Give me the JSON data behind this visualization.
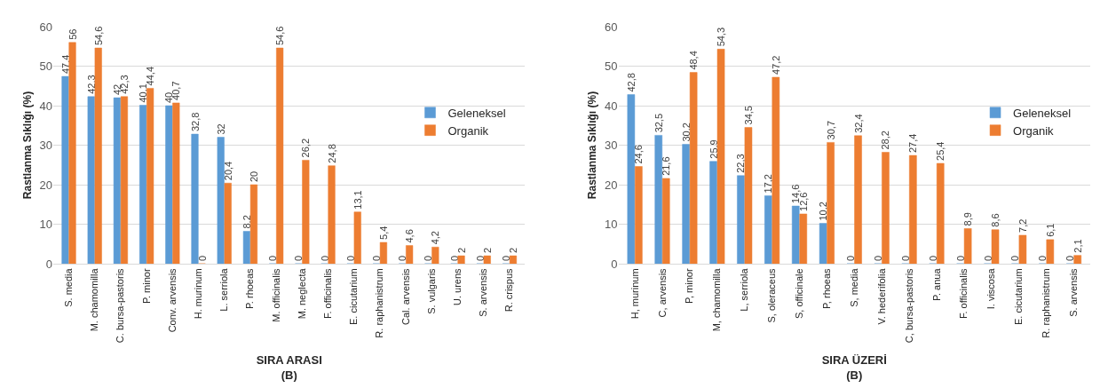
{
  "chart_data": [
    {
      "type": "bar",
      "xlabel": "SIRA ARASI\n(B)",
      "ylabel": "Rastlanma Sıklığı (%)",
      "categories": [
        "S. media",
        "M. chamomilla",
        "C. bursa-pastoris",
        "P. minor",
        "Conv. arvensis",
        "H. murinum",
        "L. serriola",
        "P. rhoeas",
        "M. officinalis",
        "M. neglecta",
        "F. officinalis",
        "E. cicutarium",
        "R. raphanistrum",
        "Cal. arvensis",
        "S. vulgaris",
        "U. urens",
        "S. arvensis",
        "R. crispus"
      ],
      "series": [
        {
          "name": "Geleneksel",
          "color": "#5b9bd5",
          "values": [
            47.4,
            42.3,
            42,
            40.1,
            40,
            32.8,
            32,
            8.2,
            0,
            0,
            0,
            0,
            0,
            0,
            0,
            0,
            0,
            0
          ],
          "value_labels": [
            "47,4",
            "42,3",
            "42",
            "40,1",
            "40",
            "32,8",
            "32",
            "8,2",
            "0",
            "0",
            "0",
            "0",
            "0",
            "0",
            "0",
            "0",
            "0",
            "0"
          ]
        },
        {
          "name": "Organik",
          "color": "#ed7d31",
          "values": [
            56,
            54.6,
            42.3,
            44.4,
            40.7,
            0,
            20.4,
            20,
            54.6,
            26.2,
            24.8,
            13.1,
            5.4,
            4.6,
            4.2,
            2,
            2,
            2
          ],
          "value_labels": [
            "56",
            "54,6",
            "42,3",
            "44,4",
            "40,7",
            "0",
            "20,4",
            "20",
            "54,6",
            "26,2",
            "24,8",
            "13,1",
            "5,4",
            "4,6",
            "4,2",
            "2",
            "2",
            "2"
          ]
        }
      ],
      "ylim": [
        0,
        60
      ],
      "yticks": [
        0,
        10,
        20,
        30,
        40,
        50,
        60
      ],
      "grid": "y",
      "legend": "right"
    },
    {
      "type": "bar",
      "xlabel": "SIRA ÜZERİ\n(B)",
      "ylabel": "Rastlanma Sıklığı (%)",
      "categories": [
        "H, murinum",
        "C, arvensis",
        "P, minor",
        "M, chamomilla",
        "L, serriola",
        "S, oleraceus",
        "S, officinale",
        "P, rhoeas",
        "S, media",
        "V. hederifolia",
        "C, bursa-pastoris",
        "P. anua",
        "F. officinalis",
        "I. viscosa",
        "E. cicutarium",
        "R. raphanistrum",
        "S. arvensis"
      ],
      "series": [
        {
          "name": "Geleneksel",
          "color": "#5b9bd5",
          "values": [
            42.8,
            32.5,
            30.2,
            25.9,
            22.3,
            17.2,
            14.6,
            10.2,
            0,
            0,
            0,
            0,
            0,
            0,
            0,
            0,
            0
          ],
          "value_labels": [
            "42,8",
            "32,5",
            "30,2",
            "25,9",
            "22,3",
            "17,2",
            "14,6",
            "10,2",
            "0",
            "0",
            "0",
            "0",
            "0",
            "0",
            "0",
            "0",
            "0"
          ]
        },
        {
          "name": "Organik",
          "color": "#ed7d31",
          "values": [
            24.6,
            21.6,
            48.4,
            54.3,
            34.5,
            47.2,
            12.6,
            30.7,
            32.4,
            28.2,
            27.4,
            25.4,
            8.9,
            8.6,
            7.2,
            6.1,
            2.1
          ],
          "value_labels": [
            "24,6",
            "21,6",
            "48,4",
            "54,3",
            "34,5",
            "47,2",
            "12,6",
            "30,7",
            "32,4",
            "28,2",
            "27,4",
            "25,4",
            "8,9",
            "8,6",
            "7,2",
            "6,1",
            "2,1"
          ]
        }
      ],
      "ylim": [
        0,
        60
      ],
      "yticks": [
        0,
        10,
        20,
        30,
        40,
        50,
        60
      ],
      "grid": "y",
      "legend": "right"
    }
  ]
}
